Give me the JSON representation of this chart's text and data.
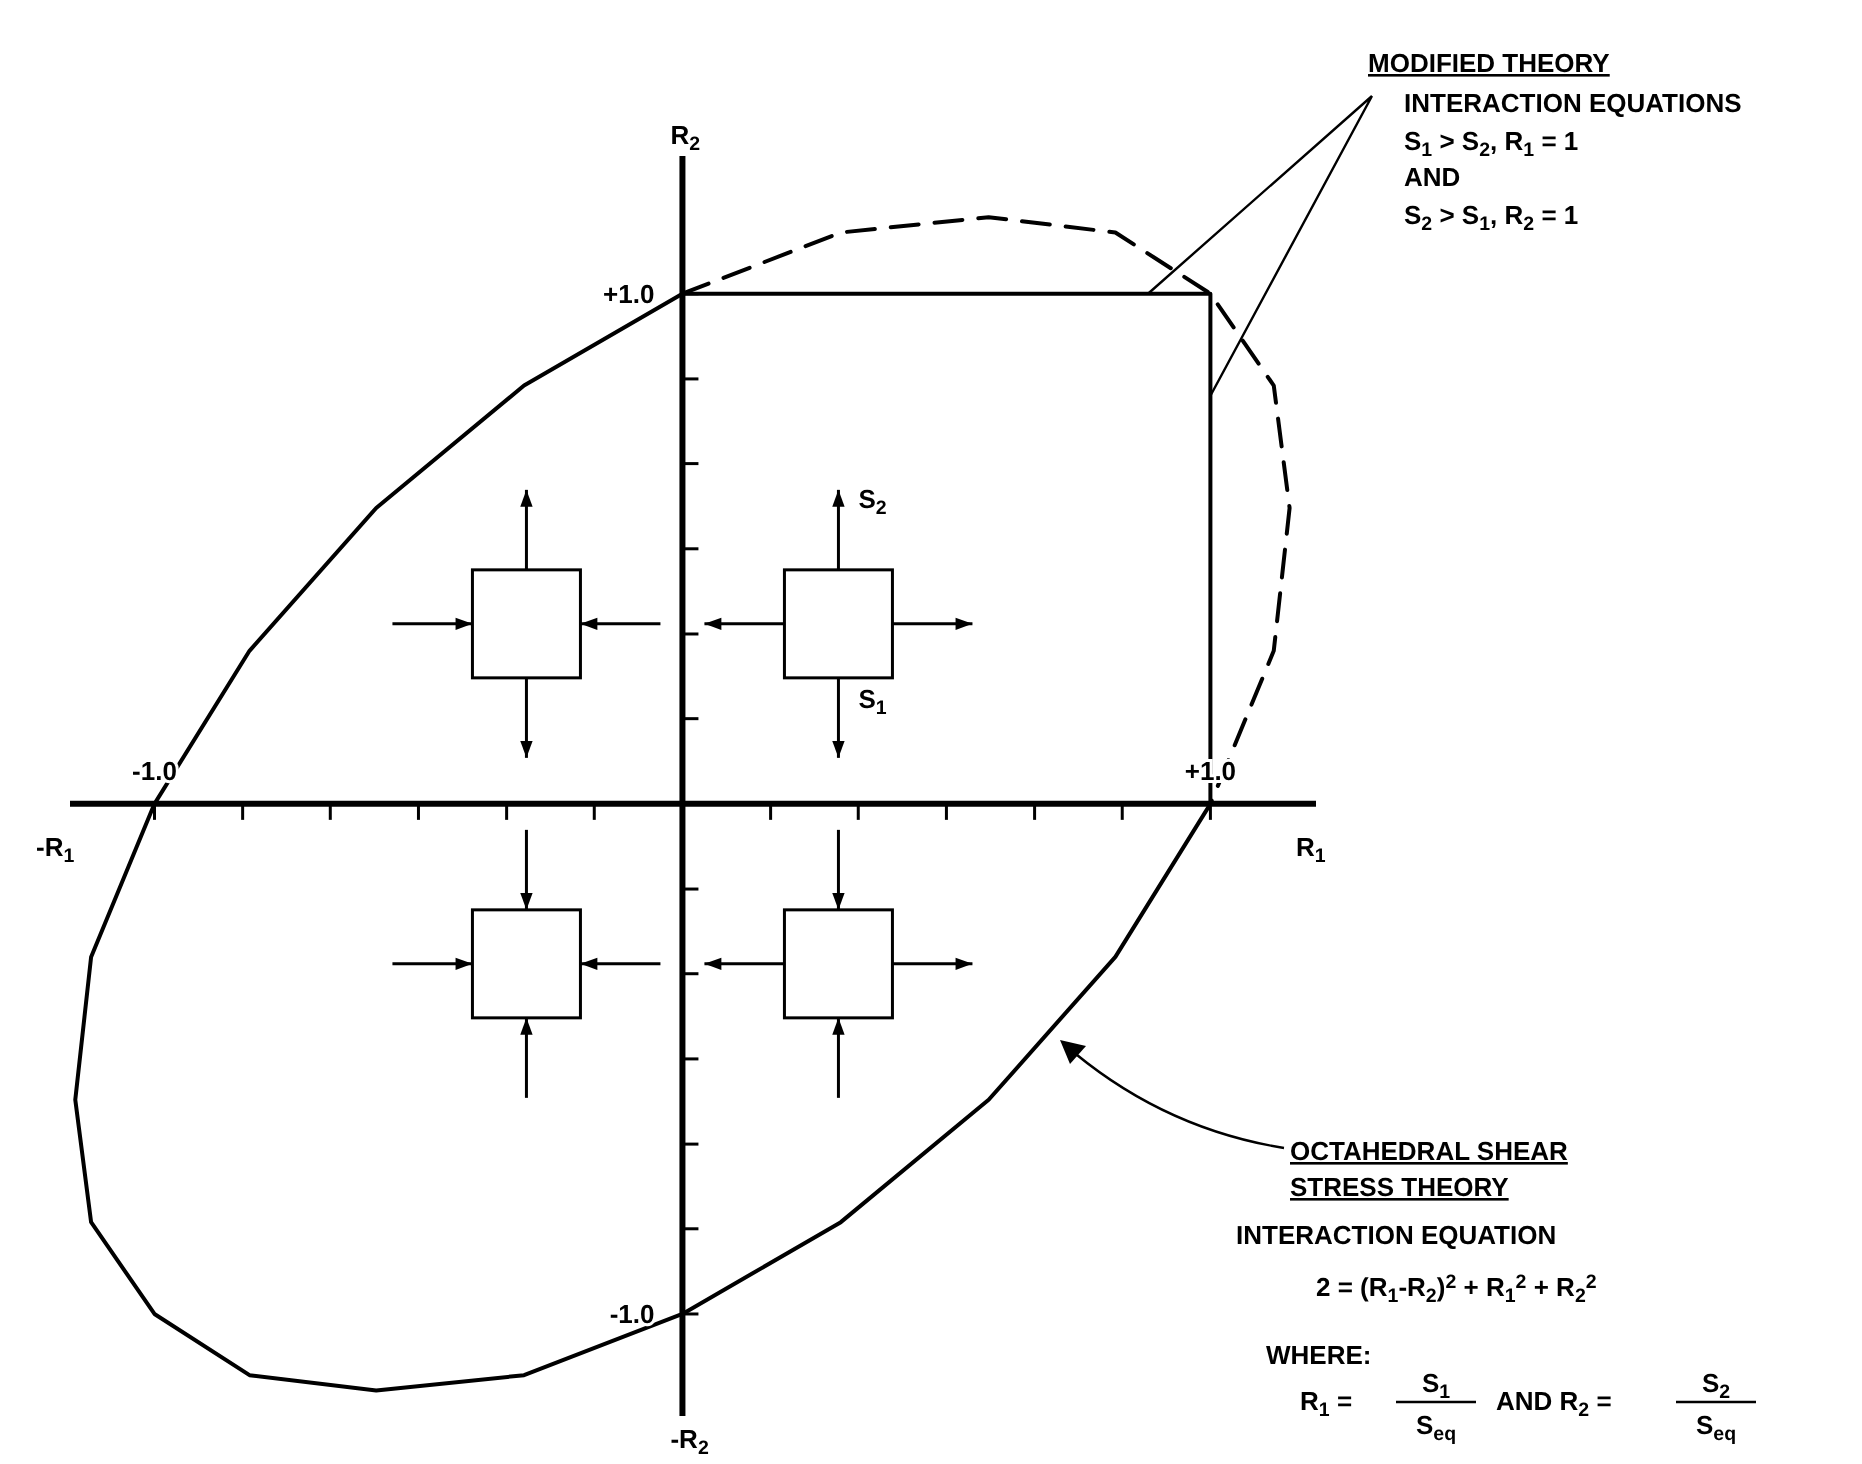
{
  "chart_data": {
    "type": "line",
    "xlabel": "R$_{1}$",
    "ylabel": "R$_{2}$",
    "xlim": [
      -1.16,
      1.2
    ],
    "ylim": [
      -1.2,
      1.27
    ],
    "xticks": [
      {
        "value": -1,
        "label": "-1.0"
      },
      {
        "value": -0.833,
        "label": null
      },
      {
        "value": -0.667,
        "label": null
      },
      {
        "value": -0.5,
        "label": null
      },
      {
        "value": -0.333,
        "label": null
      },
      {
        "value": -0.167,
        "label": null
      },
      {
        "value": 0.167,
        "label": null
      },
      {
        "value": 0.333,
        "label": null
      },
      {
        "value": 0.5,
        "label": null
      },
      {
        "value": 0.667,
        "label": null
      },
      {
        "value": 0.833,
        "label": null
      },
      {
        "value": 1,
        "label": "+1.0"
      }
    ],
    "yticks": [
      {
        "value": -1,
        "label": "-1.0"
      },
      {
        "value": -0.833,
        "label": null
      },
      {
        "value": -0.667,
        "label": null
      },
      {
        "value": -0.5,
        "label": null
      },
      {
        "value": -0.333,
        "label": null
      },
      {
        "value": -0.167,
        "label": null
      },
      {
        "value": 0.167,
        "label": null
      },
      {
        "value": 0.333,
        "label": null
      },
      {
        "value": 0.5,
        "label": null
      },
      {
        "value": 0.667,
        "label": null
      },
      {
        "value": 0.833,
        "label": null
      },
      {
        "value": 1,
        "label": "+1.0"
      }
    ],
    "series": [
      {
        "color": "#000000",
        "line_style": "solid",
        "x": [
          1,
          0.82,
          0.58,
          0.3,
          0,
          -0.3,
          -0.58,
          -0.82,
          -1,
          -1.12,
          -1.15,
          -1.12,
          -1,
          -0.82,
          -0.58,
          -0.3,
          0
        ],
        "values": [
          0,
          -0.3,
          -0.58,
          -0.82,
          -1,
          -1.12,
          -1.15,
          -1.12,
          -1,
          -0.82,
          -0.58,
          -0.3,
          0,
          0.3,
          0.58,
          0.82,
          1
        ]
      },
      {
        "color": "#000000",
        "line_style": "dashed",
        "x": [
          0,
          0.3,
          0.58,
          0.82,
          1,
          1.12,
          1.15,
          1.12,
          1
        ],
        "values": [
          1,
          1.12,
          1.15,
          1.12,
          1,
          0.82,
          0.58,
          0.3,
          0
        ]
      },
      {
        "color": "#000000",
        "line_style": "solid",
        "x": [
          0,
          1,
          1
        ],
        "values": [
          1,
          1,
          0
        ]
      }
    ],
    "annotations": [
      "-R$_{1}$",
      "-R$_{2}$",
      "S$_{2}$",
      "S$_{1}$",
      {
        "text": "MODIFIED THEORY",
        "x": 1,
        "y": 0.8
      },
      "INTERACTION EQUATIONS",
      "S$_{1}$ > S$_{2}$, R$_{1}$ = 1",
      "AND",
      "S$_{2}$ > S$_{1}$, R$_{2}$ = 1",
      "OCTAHEDRAL SHEAR STRESS THEORY",
      "INTERACTION EQUATION",
      "2 = (R$_{1}$-R$_{2}$)$^{2}$ + R$_{1}$$^{2}$ + R$_{2}$$^{2}$",
      "WHERE:",
      "R$_{1}$ =",
      "S$_{1}$",
      "S$_{eq}$",
      "AND R$_{2}$ =",
      "S$_{2}$",
      "S$_{eq}$"
    ]
  }
}
